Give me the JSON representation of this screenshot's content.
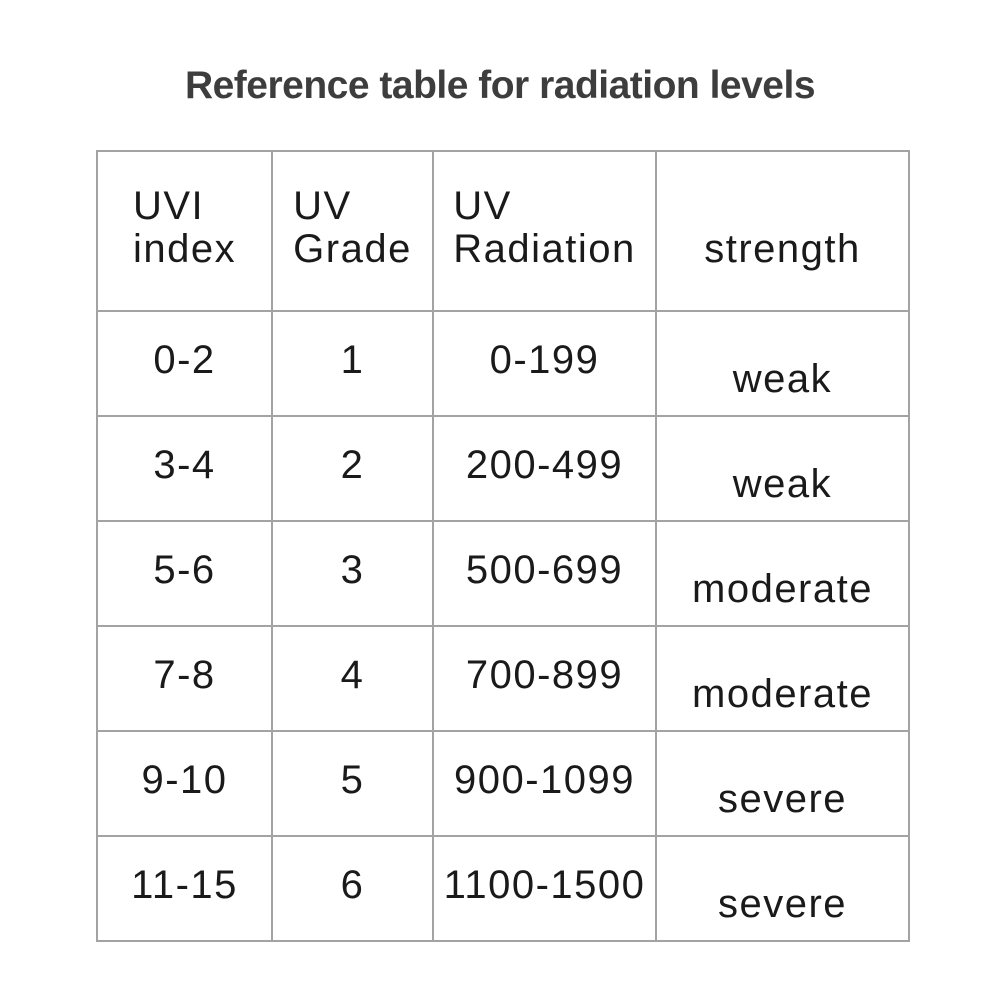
{
  "title": "Reference table for radiation levels",
  "table": {
    "headers": {
      "uvi_index": {
        "line1": "UVI",
        "line2": "index"
      },
      "uv_grade": {
        "line1": "UV",
        "line2": "Grade"
      },
      "uv_radiation": {
        "line1": "UV",
        "line2": "Radiation"
      },
      "strength": {
        "line1": "strength"
      }
    },
    "rows": [
      {
        "uvi_index": "0-2",
        "uv_grade": "1",
        "uv_radiation": "0-199",
        "strength": "weak"
      },
      {
        "uvi_index": "3-4",
        "uv_grade": "2",
        "uv_radiation": "200-499",
        "strength": "weak"
      },
      {
        "uvi_index": "5-6",
        "uv_grade": "3",
        "uv_radiation": "500-699",
        "strength": "moderate"
      },
      {
        "uvi_index": "7-8",
        "uv_grade": "4",
        "uv_radiation": "700-899",
        "strength": "moderate"
      },
      {
        "uvi_index": "9-10",
        "uv_grade": "5",
        "uv_radiation": "900-1099",
        "strength": "severe"
      },
      {
        "uvi_index": "11-15",
        "uv_grade": "6",
        "uv_radiation": "1100-1500",
        "strength": "severe"
      }
    ]
  },
  "chart_data": {
    "type": "table",
    "title": "Reference table for radiation levels",
    "columns": [
      "UVI index",
      "UV Grade",
      "UV Radiation",
      "strength"
    ],
    "rows": [
      [
        "0-2",
        "1",
        "0-199",
        "weak"
      ],
      [
        "3-4",
        "2",
        "200-499",
        "weak"
      ],
      [
        "5-6",
        "3",
        "500-699",
        "moderate"
      ],
      [
        "7-8",
        "4",
        "700-899",
        "moderate"
      ],
      [
        "9-10",
        "5",
        "900-1099",
        "severe"
      ],
      [
        "11-15",
        "6",
        "1100-1500",
        "severe"
      ]
    ]
  },
  "colors": {
    "background": "#ffffff",
    "border": "#a3a3a3",
    "text": "#1a1a1a",
    "title": "#3d3d3d"
  }
}
